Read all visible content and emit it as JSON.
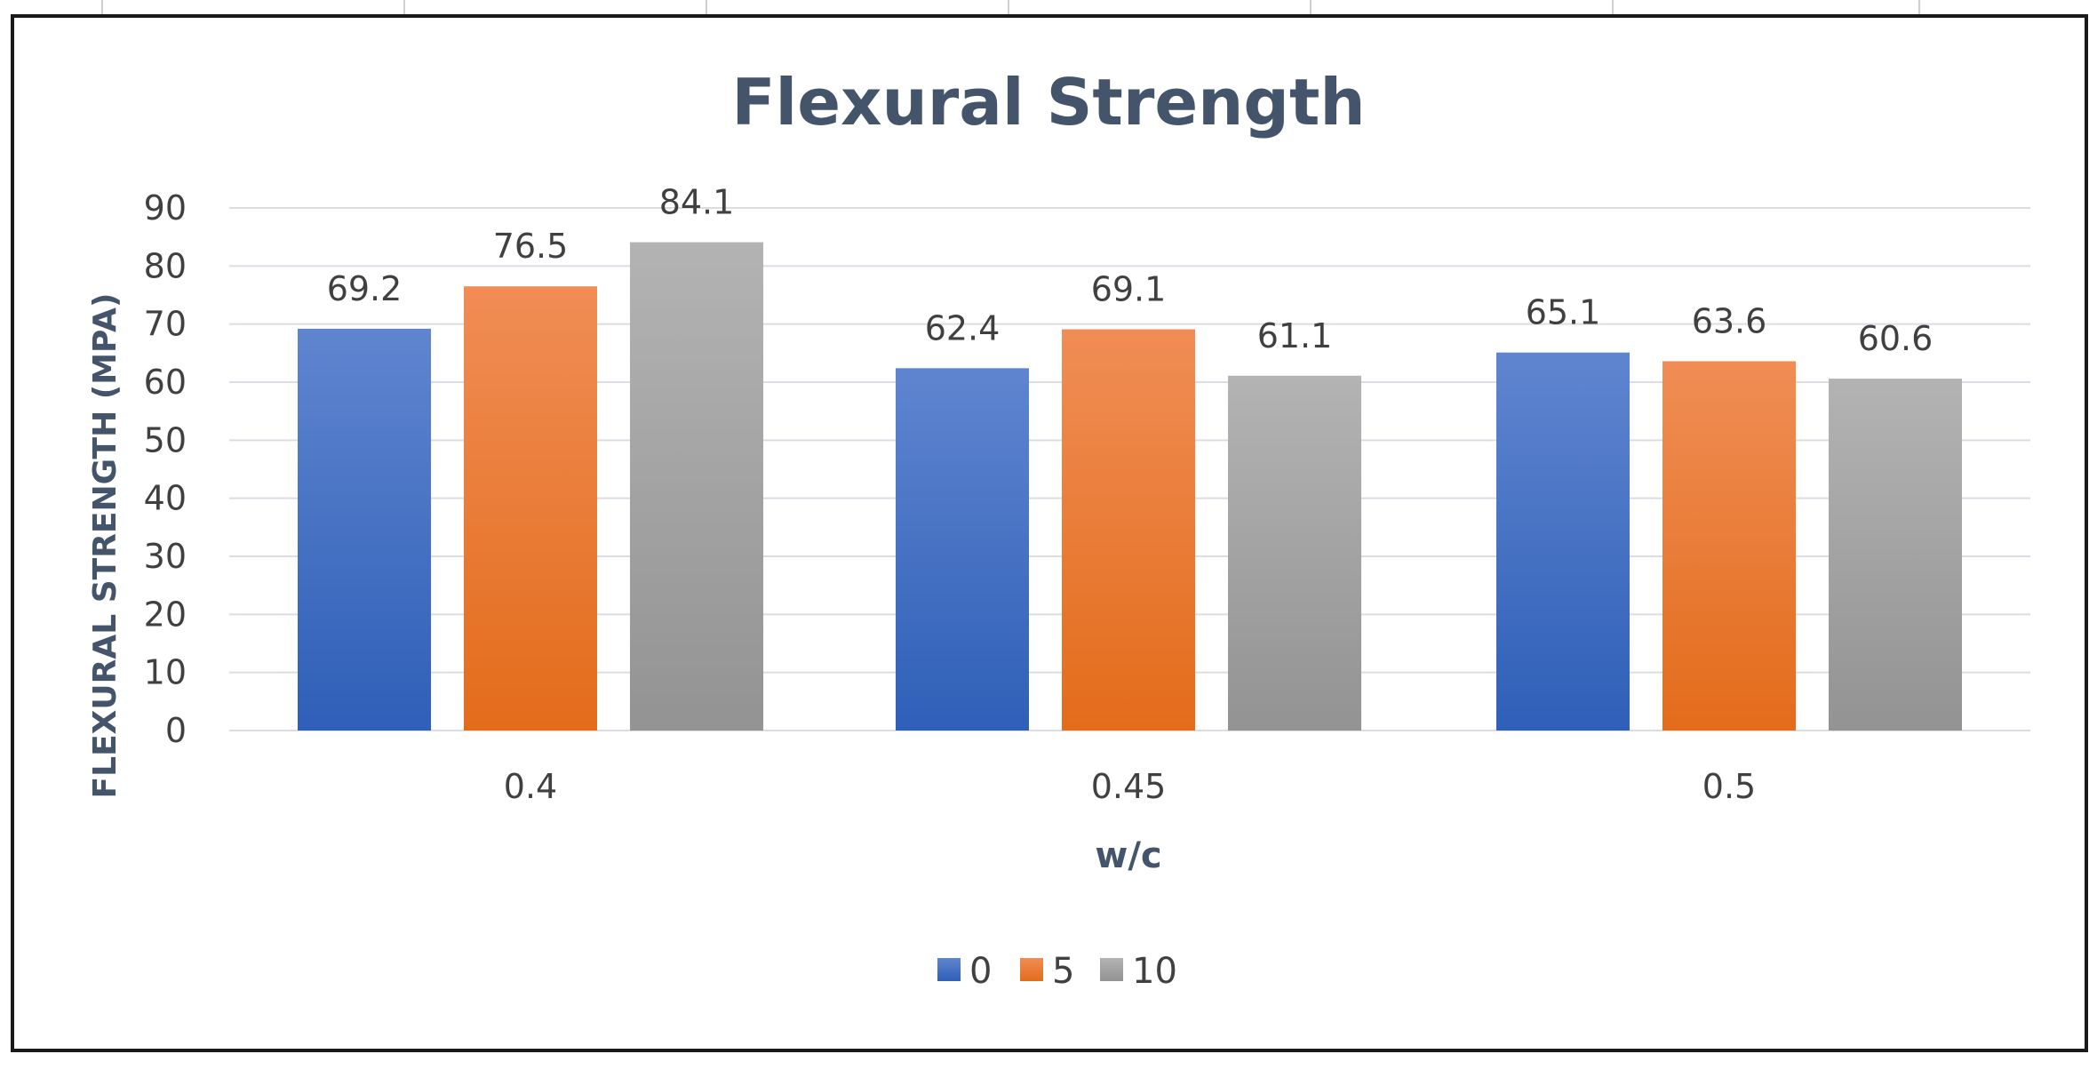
{
  "chart_data": {
    "type": "bar",
    "title": "Flexural Strength",
    "xlabel": "w/c",
    "ylabel": "FLEXURAL STRENGTH (MPA)",
    "categories": [
      "0.4",
      "0.45",
      "0.5"
    ],
    "series": [
      {
        "name": "0",
        "values": [
          69.2,
          62.4,
          65.1
        ],
        "color": "#4472c4",
        "color_light": "#5f85cf",
        "color_dark": "#2f5fb8"
      },
      {
        "name": "5",
        "values": [
          76.5,
          69.1,
          63.6
        ],
        "color": "#ed7d31",
        "color_light": "#f08d55",
        "color_dark": "#e36c1b"
      },
      {
        "name": "10",
        "values": [
          84.1,
          61.1,
          60.6
        ],
        "color": "#a5a5a5",
        "color_light": "#b3b3b3",
        "color_dark": "#939393"
      }
    ],
    "ylim": [
      0,
      90
    ],
    "yticks": [
      "0",
      "10",
      "20",
      "30",
      "40",
      "50",
      "60",
      "70",
      "80",
      "90"
    ],
    "data_labels": [
      [
        "69.2",
        "62.4",
        "65.1"
      ],
      [
        "76.5",
        "69.1",
        "63.6"
      ],
      [
        "84.1",
        "61.1",
        "60.6"
      ]
    ],
    "grid": true,
    "legend_position": "bottom"
  }
}
